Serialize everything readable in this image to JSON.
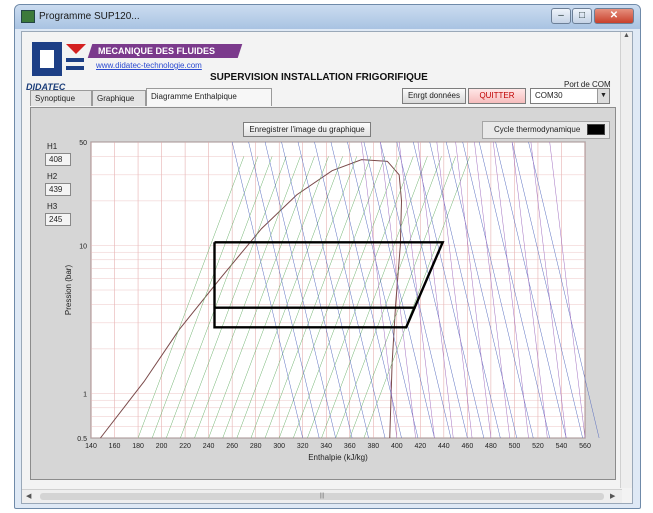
{
  "window": {
    "title": "Programme SUP120...",
    "min": "–",
    "max": "□",
    "close": "✕"
  },
  "header": {
    "logo_text": "DIDATEC",
    "banner": "MECANIQUE DES FLUIDES",
    "url": "www.didatec-technologie.com",
    "supervision_title": "SUPERVISION INSTALLATION FRIGORIFIQUE",
    "port_label": "Port de COM"
  },
  "tabs": [
    {
      "label": "Synoptique"
    },
    {
      "label": "Graphique"
    },
    {
      "label": "Diagramme Enthalpique"
    }
  ],
  "toolbar": {
    "save_data": "Enrgt données",
    "quit": "QUITTER",
    "com_port": "COM30"
  },
  "diagram": {
    "save_image": "Enregistrer l'image du graphique",
    "cycle_label": "Cycle thermodynamique",
    "fields": [
      {
        "label": "H1",
        "value": "408"
      },
      {
        "label": "H2",
        "value": "439"
      },
      {
        "label": "H3",
        "value": "245"
      }
    ]
  },
  "chart_data": {
    "type": "line",
    "xlabel": "Enthalpie (kJ/kg)",
    "ylabel": "Pression (bar)",
    "x_ticks": [
      140,
      160,
      180,
      200,
      220,
      240,
      260,
      280,
      300,
      320,
      340,
      360,
      380,
      400,
      420,
      440,
      460,
      480,
      500,
      520,
      540,
      560
    ],
    "y_ticks": [
      0.5,
      1,
      10,
      50
    ],
    "xlim": [
      140,
      560
    ],
    "ylim": [
      0.5,
      50
    ],
    "y_scale": "log",
    "grid": true,
    "series": [
      {
        "x": [
          245,
          439,
          408,
          245,
          245
        ],
        "y": [
          10.5,
          10.5,
          2.8,
          2.8,
          10.5
        ],
        "color": "#000000"
      },
      {
        "x": [
          245,
          416
        ],
        "y": [
          3.8,
          3.8
        ],
        "color": "#000000"
      }
    ]
  },
  "colors": {
    "accent": "#7b3a8c",
    "quit": "#c00000",
    "chart_bg": "#ffffff"
  }
}
